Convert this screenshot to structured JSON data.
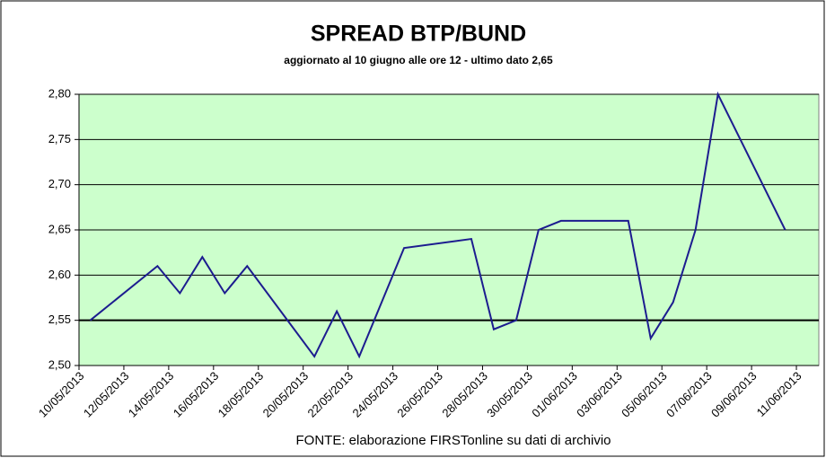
{
  "chart_data": {
    "type": "line",
    "title": "SPREAD  BTP/BUND",
    "subtitle": "aggiornato al 10 giugno alle ore 12 -  ultimo dato 2,65",
    "source": "FONTE: elaborazione FIRSTonline su dati di archivio",
    "x": [
      "10/05/2013",
      "13/05/2013",
      "14/05/2013",
      "15/05/2013",
      "16/05/2013",
      "17/05/2013",
      "20/05/2013",
      "21/05/2013",
      "22/05/2013",
      "24/05/2013",
      "27/05/2013",
      "28/05/2013",
      "29/05/2013",
      "30/05/2013",
      "31/05/2013",
      "03/06/2013",
      "04/06/2013",
      "05/06/2013",
      "06/06/2013",
      "07/06/2013",
      "10/06/2013"
    ],
    "series": [
      {
        "name": "Spread",
        "color": "#1c1c8f",
        "values": [
          2.55,
          2.61,
          2.58,
          2.62,
          2.58,
          2.61,
          2.51,
          2.56,
          2.51,
          2.63,
          2.64,
          2.54,
          2.55,
          2.65,
          2.66,
          2.66,
          2.53,
          2.57,
          2.65,
          2.8,
          2.65
        ]
      }
    ],
    "xticks": [
      "10/05/2013",
      "12/05/2013",
      "14/05/2013",
      "16/05/2013",
      "18/05/2013",
      "20/05/2013",
      "22/05/2013",
      "24/05/2013",
      "26/05/2013",
      "28/05/2013",
      "30/05/2013",
      "01/06/2013",
      "03/06/2013",
      "05/06/2013",
      "07/06/2013",
      "09/06/2013",
      "11/06/2013"
    ],
    "ylim": [
      2.5,
      2.8
    ],
    "yticks": [
      {
        "value": 2.5,
        "label": "2,50"
      },
      {
        "value": 2.55,
        "label": "2,55"
      },
      {
        "value": 2.6,
        "label": "2,60"
      },
      {
        "value": 2.65,
        "label": "2,65"
      },
      {
        "value": 2.7,
        "label": "2,70"
      },
      {
        "value": 2.75,
        "label": "2,75"
      },
      {
        "value": 2.8,
        "label": "2,80"
      }
    ],
    "grid": true,
    "plot_background": "#ccffcc"
  }
}
